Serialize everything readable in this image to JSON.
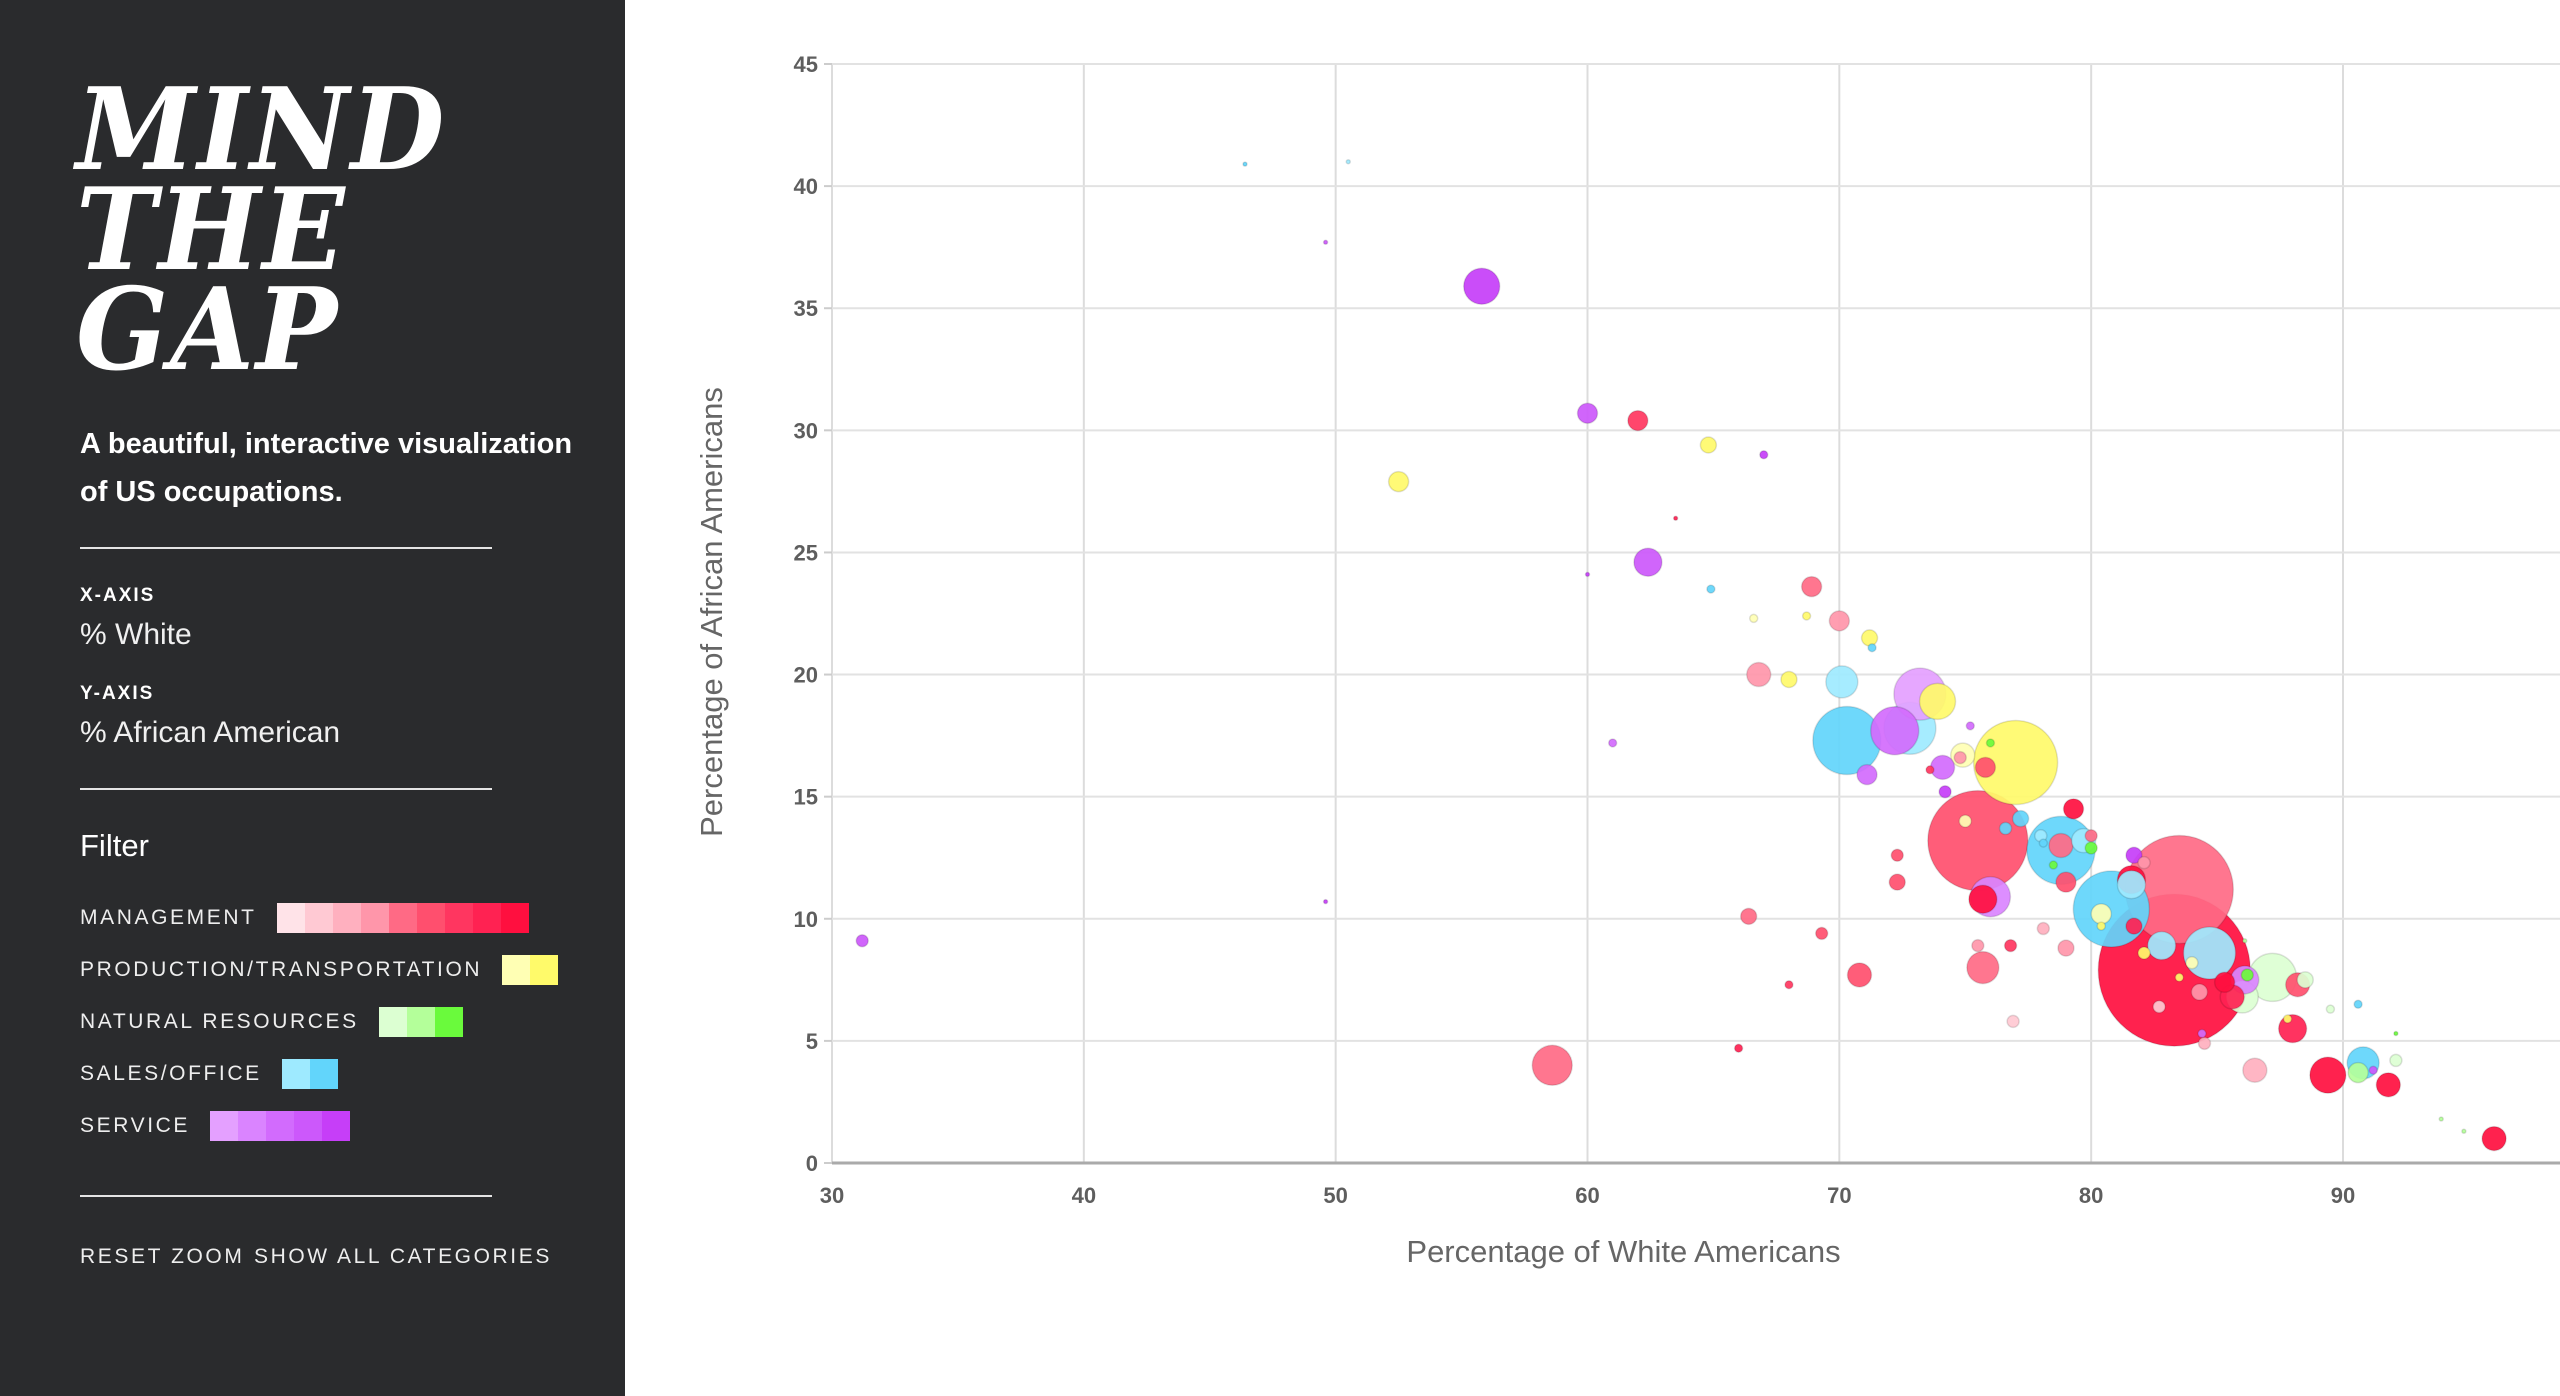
{
  "sidebar": {
    "logo_lines": [
      "MIND",
      "THE",
      "GAP"
    ],
    "subtitle_line1": "A beautiful, interactive visualization",
    "subtitle_line2": "of US occupations.",
    "x_axis_heading": "X-AXIS",
    "x_axis_value": "% White",
    "y_axis_heading": "Y-AXIS",
    "y_axis_value": "% African American",
    "filter_title": "Filter",
    "legend": [
      {
        "label": "MANAGEMENT",
        "key": "management",
        "colors": [
          "#ffe3e8",
          "#ffc9d3",
          "#ffb0bf",
          "#ff96aa",
          "#ff6a85",
          "#ff4f6e",
          "#ff3660",
          "#ff2252",
          "#ff0f3f"
        ]
      },
      {
        "label": "PRODUCTION/TRANSPORTATION",
        "key": "production",
        "colors": [
          "#ffffb4",
          "#fffa6a"
        ]
      },
      {
        "label": "NATURAL RESOURCES",
        "key": "natural",
        "colors": [
          "#dcffd2",
          "#b4ff9a",
          "#6afa3c"
        ]
      },
      {
        "label": "SALES/OFFICE",
        "key": "sales",
        "colors": [
          "#9eeaff",
          "#62d5fb"
        ]
      },
      {
        "label": "SERVICE",
        "key": "service",
        "colors": [
          "#e4a0ff",
          "#da84ff",
          "#d26bfd",
          "#cc58fb",
          "#c63ef8"
        ]
      }
    ],
    "reset_zoom_label": "RESET ZOOM",
    "show_all_label": "SHOW ALL CATEGORIES"
  },
  "chart_data": {
    "type": "scatter",
    "title": "",
    "xlabel": "Percentage of White Americans",
    "ylabel": "Percentage of African Americans",
    "xlim": [
      30,
      98.6
    ],
    "ylim": [
      0,
      45
    ],
    "xticks": [
      30,
      40,
      50,
      60,
      70,
      80,
      90
    ],
    "yticks": [
      0,
      5,
      10,
      15,
      20,
      25,
      30,
      35,
      40,
      45
    ],
    "grid": true,
    "legend": "sidebar",
    "size_encoding": "relative bubble size",
    "series": [
      {
        "name": "Management",
        "key": "management",
        "points": [
          [
            83.3,
            7.9,
            38,
            8
          ],
          [
            75.5,
            13.2,
            25,
            5
          ],
          [
            83.5,
            11.2,
            27,
            4
          ],
          [
            75.7,
            10.8,
            7,
            8
          ],
          [
            75.7,
            8.0,
            8,
            4
          ],
          [
            78.8,
            13.0,
            6,
            4
          ],
          [
            79.0,
            11.5,
            5,
            5
          ],
          [
            79.3,
            14.5,
            5,
            8
          ],
          [
            79.0,
            8.8,
            4,
            3
          ],
          [
            81.6,
            11.6,
            7,
            8
          ],
          [
            88.2,
            7.3,
            6,
            5
          ],
          [
            88.0,
            5.5,
            7,
            7
          ],
          [
            89.4,
            3.6,
            9,
            8
          ],
          [
            91.8,
            3.2,
            6,
            8
          ],
          [
            96.0,
            1.0,
            6,
            8
          ],
          [
            86.5,
            3.8,
            6,
            2
          ],
          [
            85.6,
            6.8,
            6,
            7
          ],
          [
            85.3,
            7.4,
            5,
            8
          ],
          [
            58.6,
            4.0,
            10,
            4
          ],
          [
            70.8,
            7.7,
            6,
            5
          ],
          [
            66.8,
            20.0,
            6,
            3
          ],
          [
            68.9,
            23.6,
            5,
            4
          ],
          [
            70.0,
            22.2,
            5,
            3
          ],
          [
            66.4,
            10.1,
            4,
            4
          ],
          [
            72.3,
            11.5,
            4,
            5
          ],
          [
            62.0,
            30.4,
            5,
            6
          ],
          [
            81.7,
            9.7,
            4,
            7
          ],
          [
            76.8,
            8.9,
            3,
            6
          ],
          [
            78.1,
            9.6,
            3,
            2
          ],
          [
            72.3,
            12.6,
            3,
            5
          ],
          [
            69.3,
            9.4,
            3,
            5
          ],
          [
            75.8,
            16.2,
            5,
            5
          ],
          [
            74.8,
            16.6,
            3,
            3
          ],
          [
            84.5,
            4.9,
            3,
            2
          ],
          [
            82.1,
            12.3,
            3,
            3
          ],
          [
            80.0,
            13.4,
            3,
            4
          ],
          [
            66.0,
            4.7,
            2,
            7
          ],
          [
            68.0,
            7.3,
            2,
            6
          ],
          [
            75.5,
            8.9,
            3,
            3
          ],
          [
            84.3,
            7.0,
            4,
            3
          ],
          [
            82.7,
            6.4,
            3,
            1
          ],
          [
            76.9,
            5.8,
            3,
            1
          ],
          [
            73.6,
            16.1,
            2,
            6
          ],
          [
            63.5,
            26.4,
            1,
            7
          ]
        ]
      },
      {
        "name": "Production/Transportation",
        "key": "production",
        "points": [
          [
            77.0,
            16.4,
            21,
            1
          ],
          [
            73.9,
            18.9,
            9,
            1
          ],
          [
            74.9,
            16.7,
            6,
            0
          ],
          [
            52.5,
            27.9,
            5,
            1
          ],
          [
            64.8,
            29.4,
            4,
            1
          ],
          [
            71.2,
            21.5,
            4,
            1
          ],
          [
            68.0,
            19.8,
            4,
            1
          ],
          [
            80.4,
            10.2,
            5,
            0
          ],
          [
            82.1,
            8.6,
            3,
            1
          ],
          [
            84.0,
            8.2,
            3,
            0
          ],
          [
            75.0,
            14.0,
            3,
            0
          ],
          [
            68.7,
            22.4,
            2,
            1
          ],
          [
            66.6,
            22.3,
            2,
            0
          ],
          [
            83.5,
            7.6,
            2,
            1
          ],
          [
            80.4,
            9.7,
            2,
            1
          ],
          [
            87.8,
            5.9,
            2,
            1
          ]
        ]
      },
      {
        "name": "Natural Resources",
        "key": "natural",
        "points": [
          [
            87.2,
            7.6,
            12,
            0
          ],
          [
            86.0,
            6.8,
            8,
            0
          ],
          [
            90.6,
            3.7,
            5,
            1
          ],
          [
            92.1,
            4.2,
            3,
            0
          ],
          [
            88.5,
            7.5,
            4,
            0
          ],
          [
            86.2,
            7.7,
            3,
            2
          ],
          [
            80.0,
            12.9,
            3,
            2
          ],
          [
            76.0,
            17.2,
            2,
            2
          ],
          [
            78.5,
            12.2,
            2,
            2
          ],
          [
            89.5,
            6.3,
            2,
            0
          ],
          [
            93.9,
            1.8,
            1,
            1
          ],
          [
            94.8,
            1.3,
            1,
            1
          ],
          [
            86.1,
            9.1,
            1,
            1
          ],
          [
            92.1,
            5.3,
            1,
            2
          ]
        ]
      },
      {
        "name": "Sales/Office",
        "key": "sales",
        "points": [
          [
            80.8,
            10.4,
            19,
            1
          ],
          [
            78.8,
            12.8,
            17,
            1
          ],
          [
            70.3,
            17.3,
            17,
            1
          ],
          [
            72.8,
            17.8,
            13,
            0
          ],
          [
            84.7,
            8.6,
            13,
            0
          ],
          [
            81.6,
            11.4,
            7,
            0
          ],
          [
            82.8,
            8.9,
            7,
            0
          ],
          [
            70.1,
            19.7,
            8,
            0
          ],
          [
            79.7,
            13.2,
            6,
            0
          ],
          [
            77.2,
            14.1,
            4,
            1
          ],
          [
            90.8,
            4.1,
            8,
            1
          ],
          [
            64.9,
            23.5,
            2,
            1
          ],
          [
            71.3,
            21.1,
            2,
            1
          ],
          [
            78.0,
            13.4,
            3,
            0
          ],
          [
            76.6,
            13.7,
            3,
            1
          ],
          [
            78.1,
            13.1,
            2,
            1
          ],
          [
            46.4,
            40.9,
            1,
            1
          ],
          [
            50.5,
            41.0,
            1,
            0
          ],
          [
            90.6,
            6.5,
            2,
            1
          ]
        ]
      },
      {
        "name": "Service",
        "key": "service",
        "points": [
          [
            55.8,
            35.9,
            9,
            4
          ],
          [
            72.2,
            17.7,
            12,
            2
          ],
          [
            73.2,
            19.2,
            13,
            0
          ],
          [
            74.1,
            16.2,
            6,
            2
          ],
          [
            76.0,
            10.9,
            10,
            1
          ],
          [
            60.0,
            30.7,
            5,
            3
          ],
          [
            62.4,
            24.6,
            7,
            3
          ],
          [
            71.1,
            15.9,
            5,
            2
          ],
          [
            67.0,
            29.0,
            2,
            4
          ],
          [
            61.0,
            17.2,
            2,
            2
          ],
          [
            31.2,
            9.1,
            3,
            3
          ],
          [
            74.2,
            15.2,
            3,
            4
          ],
          [
            81.7,
            12.6,
            4,
            4
          ],
          [
            86.1,
            7.5,
            7,
            1
          ],
          [
            75.2,
            17.9,
            2,
            2
          ],
          [
            60.0,
            24.1,
            1,
            4
          ],
          [
            49.6,
            37.7,
            1,
            3
          ],
          [
            49.6,
            10.7,
            1,
            4
          ],
          [
            84.4,
            5.3,
            2,
            2
          ],
          [
            91.2,
            3.8,
            2,
            3
          ]
        ]
      }
    ]
  }
}
